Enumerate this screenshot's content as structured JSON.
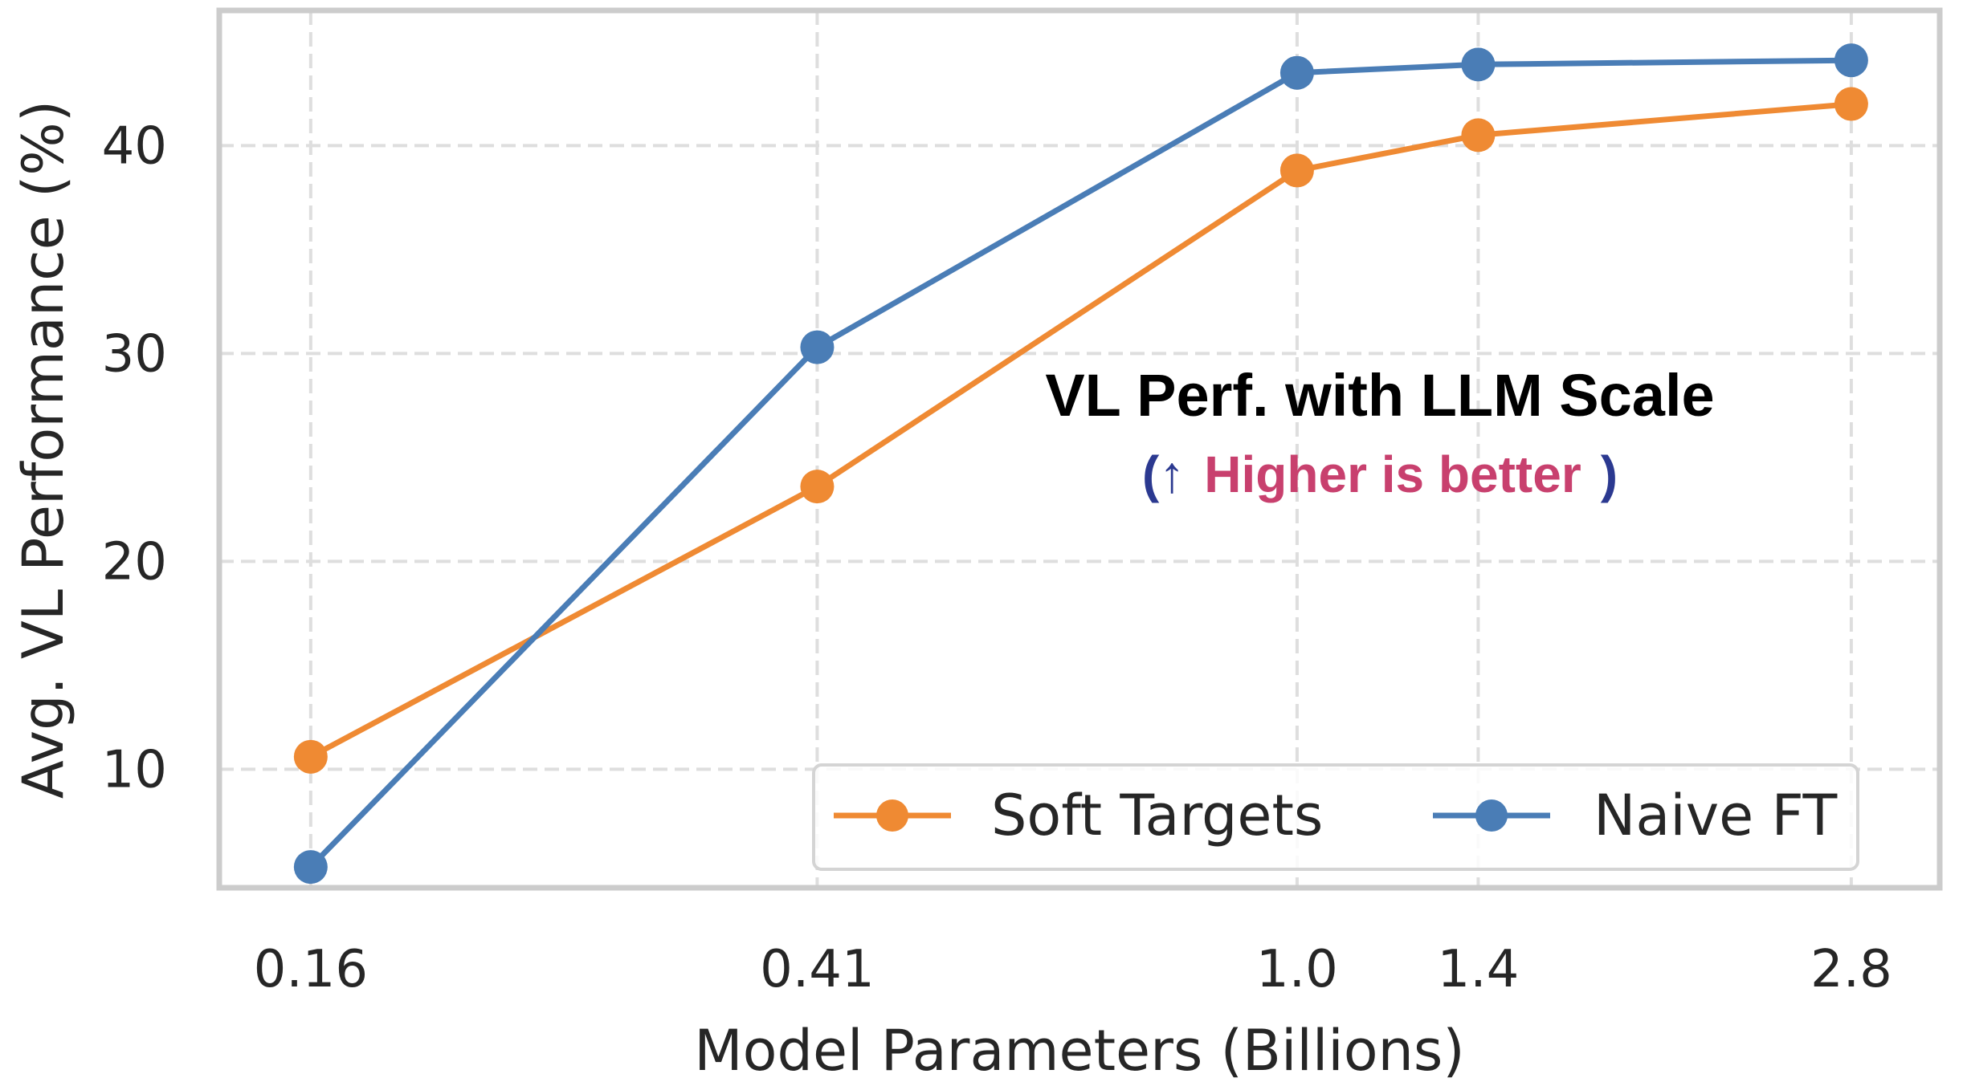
{
  "chart_data": {
    "type": "line",
    "title": "",
    "xlabel": "Model Parameters (Billions)",
    "ylabel": "Avg. VL Performance (%)",
    "x": [
      0.16,
      0.41,
      1.0,
      1.4,
      2.8
    ],
    "x_tick_labels": [
      "0.16",
      "0.41",
      "1.0",
      "1.4",
      "2.8"
    ],
    "x_scale": "log",
    "xlim": [
      0.135,
      3.3
    ],
    "ylim": [
      4.3,
      46.5
    ],
    "y_ticks": [
      10,
      20,
      30,
      40
    ],
    "y_tick_labels": [
      "10",
      "20",
      "30",
      "40"
    ],
    "grid": true,
    "legend_position": "lower-right",
    "series": [
      {
        "name": "Soft Targets",
        "color": "#ef8a33",
        "values": [
          10.6,
          23.6,
          38.8,
          40.5,
          42.0
        ]
      },
      {
        "name": "Naive FT",
        "color": "#4a7db6",
        "values": [
          5.3,
          30.3,
          43.5,
          43.9,
          44.1
        ]
      }
    ],
    "annotation": {
      "title": "VL Perf. with LLM Scale",
      "open_paren": "(",
      "arrow": "↑",
      "subtitle": "Higher is better",
      "close_paren": ")",
      "paren_color": "#2b3990",
      "subtitle_color": "#c8406e"
    }
  }
}
